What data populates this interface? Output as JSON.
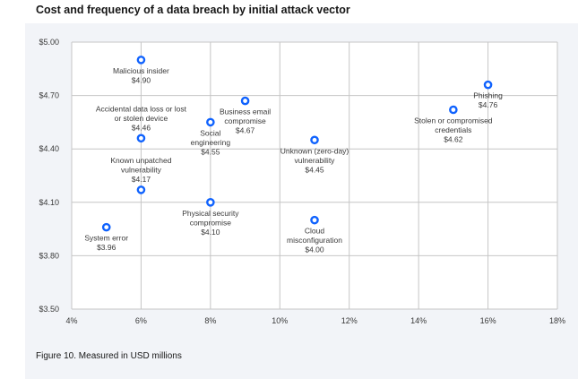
{
  "title": "Cost and frequency of a data breach by initial attack vector",
  "caption": "Figure 10. Measured in USD millions",
  "colors": {
    "point": "#0f62fe",
    "panel": "#f2f4f8",
    "grid": "#c6c6c6",
    "text": "#161616",
    "label": "#393939"
  },
  "chart_data": {
    "type": "scatter",
    "title": "Cost and frequency of a data breach by initial attack vector",
    "xlabel": "",
    "ylabel": "",
    "xlim": [
      4,
      18
    ],
    "ylim": [
      3.5,
      5.0
    ],
    "x_ticks": [
      "4%",
      "6%",
      "8%",
      "10%",
      "12%",
      "14%",
      "16%",
      "18%"
    ],
    "x_tick_values": [
      4,
      6,
      8,
      10,
      12,
      14,
      16,
      18
    ],
    "y_ticks": [
      "$3.50",
      "$3.80",
      "$4.10",
      "$4.40",
      "$4.70",
      "$5.00"
    ],
    "y_tick_values": [
      3.5,
      3.8,
      4.1,
      4.4,
      4.7,
      5.0
    ],
    "grid": true,
    "points": [
      {
        "name": "Malicious insider",
        "x": 6,
        "y": 4.9,
        "value_label": "$4.90",
        "label_lines": [
          "Malicious insider"
        ],
        "label_pos": "below"
      },
      {
        "name": "Accidental data loss or lost or stolen device",
        "x": 6,
        "y": 4.46,
        "value_label": "$4.46",
        "label_lines": [
          "Accidental data loss or lost",
          "or stolen device"
        ],
        "label_pos": "above"
      },
      {
        "name": "Known unpatched vulnerability",
        "x": 6,
        "y": 4.17,
        "value_label": "$4.17",
        "label_lines": [
          "Known unpatched",
          "vulnerability"
        ],
        "label_pos": "above"
      },
      {
        "name": "System error",
        "x": 5,
        "y": 3.96,
        "value_label": "$3.96",
        "label_lines": [
          "System error"
        ],
        "label_pos": "below"
      },
      {
        "name": "Business email compromise",
        "x": 9,
        "y": 4.67,
        "value_label": "$4.67",
        "label_lines": [
          "Business email",
          "compromise"
        ],
        "label_pos": "below"
      },
      {
        "name": "Social engineering",
        "x": 8,
        "y": 4.55,
        "value_label": "$4.55",
        "label_lines": [
          "Social",
          "engineering"
        ],
        "label_pos": "below"
      },
      {
        "name": "Physical security compromise",
        "x": 8,
        "y": 4.1,
        "value_label": "$4.10",
        "label_lines": [
          "Physical security",
          "compromise"
        ],
        "label_pos": "below"
      },
      {
        "name": "Unknown (zero-day) vulnerability",
        "x": 11,
        "y": 4.45,
        "value_label": "$4.45",
        "label_lines": [
          "Unknown (zero-day)",
          "vulnerability"
        ],
        "label_pos": "below"
      },
      {
        "name": "Cloud misconfiguration",
        "x": 11,
        "y": 4.0,
        "value_label": "$4.00",
        "label_lines": [
          "Cloud",
          "misconfiguration"
        ],
        "label_pos": "below"
      },
      {
        "name": "Phishing",
        "x": 16,
        "y": 4.76,
        "value_label": "$4.76",
        "label_lines": [
          "Phishing"
        ],
        "label_pos": "below"
      },
      {
        "name": "Stolen or compromised credentials",
        "x": 15,
        "y": 4.62,
        "value_label": "$4.62",
        "label_lines": [
          "Stolen or compromised",
          "credentials"
        ],
        "label_pos": "below"
      }
    ]
  }
}
